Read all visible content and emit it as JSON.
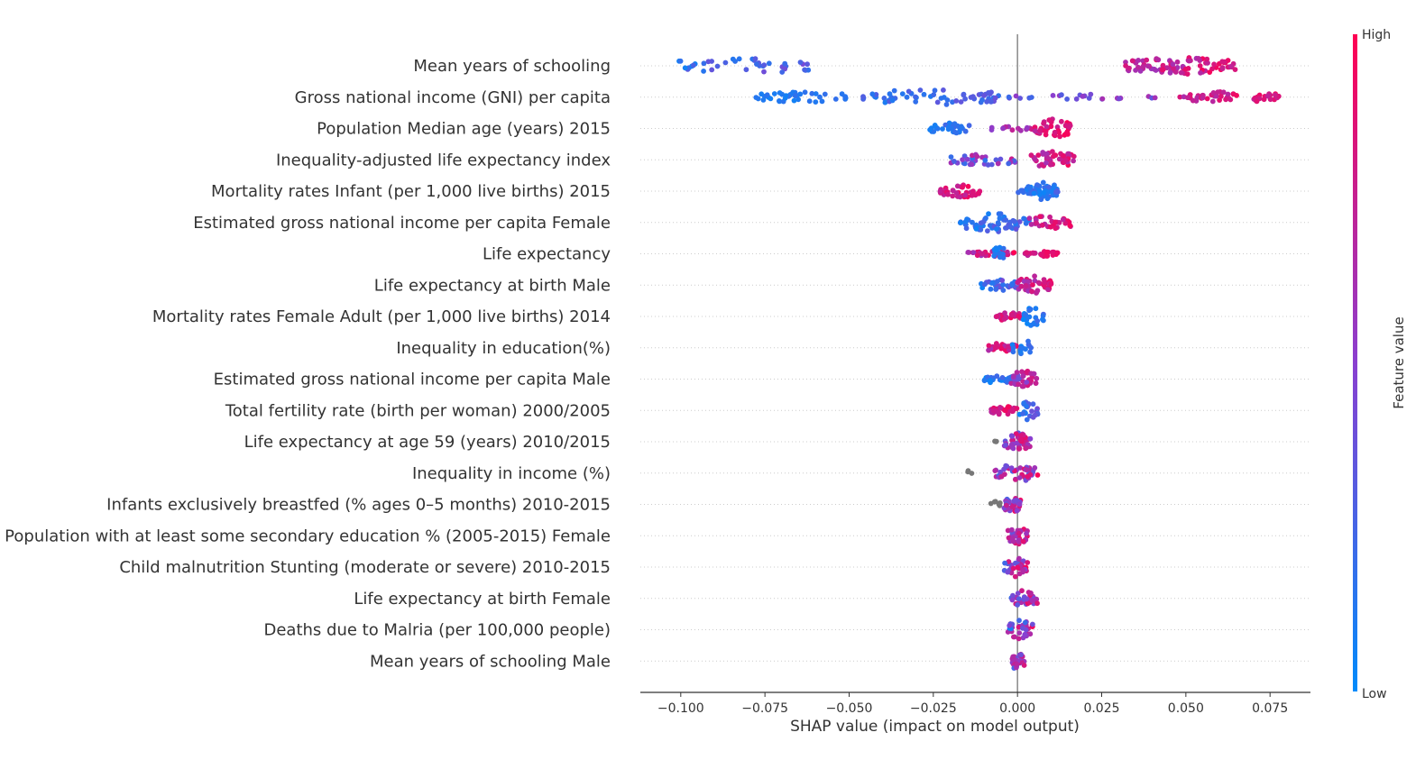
{
  "chart_data": {
    "type": "scatter",
    "subtype": "shap-beeswarm-summary",
    "xlabel": "SHAP value (impact on model output)",
    "xlim": [
      -0.112,
      0.087
    ],
    "xticks": [
      {
        "value": -0.1,
        "label": "−0.100"
      },
      {
        "value": -0.075,
        "label": "−0.075"
      },
      {
        "value": -0.05,
        "label": "−0.050"
      },
      {
        "value": -0.025,
        "label": "−0.025"
      },
      {
        "value": 0.0,
        "label": "0.000"
      },
      {
        "value": 0.025,
        "label": "0.025"
      },
      {
        "value": 0.05,
        "label": "0.050"
      },
      {
        "value": 0.075,
        "label": "0.075"
      }
    ],
    "colorbar": {
      "title": "Feature value",
      "high_label": "High",
      "low_label": "Low",
      "low_color": "#008bfb",
      "high_color": "#ff0052"
    },
    "missing_color": "#777777",
    "features": [
      {
        "name": "Mean years of schooling",
        "clusters": [
          {
            "x0": -0.102,
            "x1": -0.06,
            "n": 40,
            "c0": 0.05,
            "c1": 0.45,
            "spread": 0.9
          },
          {
            "x0": 0.032,
            "x1": 0.065,
            "n": 90,
            "c0": 0.55,
            "c1": 1.0,
            "spread": 1.0
          }
        ]
      },
      {
        "name": "Gross national income (GNI) per capita",
        "clusters": [
          {
            "x0": -0.078,
            "x1": -0.05,
            "n": 40,
            "c0": 0.05,
            "c1": 0.2,
            "spread": 0.6
          },
          {
            "x0": -0.046,
            "x1": -0.005,
            "n": 60,
            "c0": 0.05,
            "c1": 0.4,
            "spread": 0.9
          },
          {
            "x0": -0.003,
            "x1": 0.045,
            "n": 25,
            "c0": 0.2,
            "c1": 0.7,
            "spread": 0.3
          },
          {
            "x0": 0.048,
            "x1": 0.078,
            "n": 50,
            "c0": 0.6,
            "c1": 1.0,
            "spread": 0.6
          }
        ]
      },
      {
        "name": "Population Median age (years) 2015",
        "clusters": [
          {
            "x0": -0.026,
            "x1": -0.014,
            "n": 30,
            "c0": 0.0,
            "c1": 0.3,
            "spread": 0.6
          },
          {
            "x0": -0.008,
            "x1": 0.005,
            "n": 14,
            "c0": 0.4,
            "c1": 0.8,
            "spread": 0.3
          },
          {
            "x0": 0.005,
            "x1": 0.016,
            "n": 40,
            "c0": 0.7,
            "c1": 1.0,
            "spread": 1.0
          }
        ]
      },
      {
        "name": "Inequality-adjusted life expectancy index",
        "clusters": [
          {
            "x0": -0.021,
            "x1": 0.001,
            "n": 35,
            "c0": 0.0,
            "c1": 0.9,
            "spread": 0.6
          },
          {
            "x0": 0.004,
            "x1": 0.017,
            "n": 45,
            "c0": 0.55,
            "c1": 1.0,
            "spread": 1.0
          }
        ]
      },
      {
        "name": "Mortality rates Infant (per 1,000 live births) 2015",
        "clusters": [
          {
            "x0": -0.023,
            "x1": -0.011,
            "n": 35,
            "c0": 0.65,
            "c1": 1.0,
            "spread": 0.7
          },
          {
            "x0": 0.0,
            "x1": 0.006,
            "n": 15,
            "c0": 0.0,
            "c1": 0.4,
            "spread": 0.3
          },
          {
            "x0": 0.003,
            "x1": 0.012,
            "n": 45,
            "c0": 0.0,
            "c1": 0.3,
            "spread": 1.0
          }
        ]
      },
      {
        "name": "Estimated gross national income per capita Female",
        "clusters": [
          {
            "x0": -0.017,
            "x1": 0.004,
            "n": 60,
            "c0": 0.0,
            "c1": 0.4,
            "spread": 1.0
          },
          {
            "x0": 0.003,
            "x1": 0.016,
            "n": 30,
            "c0": 0.6,
            "c1": 1.0,
            "spread": 0.8
          }
        ]
      },
      {
        "name": "Life expectancy",
        "clusters": [
          {
            "x0": -0.015,
            "x1": -0.001,
            "n": 30,
            "c0": 0.55,
            "c1": 1.0,
            "spread": 0.3
          },
          {
            "x0": -0.007,
            "x1": -0.004,
            "n": 14,
            "c0": 0.0,
            "c1": 0.2,
            "spread": 1.0
          },
          {
            "x0": 0.002,
            "x1": 0.012,
            "n": 25,
            "c0": 0.7,
            "c1": 1.0,
            "spread": 0.3
          }
        ]
      },
      {
        "name": "Life expectancy at birth Male",
        "clusters": [
          {
            "x0": -0.011,
            "x1": 0.0,
            "n": 30,
            "c0": 0.0,
            "c1": 0.5,
            "spread": 0.6
          },
          {
            "x0": 0.0,
            "x1": 0.01,
            "n": 40,
            "c0": 0.5,
            "c1": 1.0,
            "spread": 1.0
          }
        ]
      },
      {
        "name": "Mortality rates Female Adult (per 1,000 live births) 2014",
        "clusters": [
          {
            "x0": -0.007,
            "x1": 0.001,
            "n": 25,
            "c0": 0.6,
            "c1": 1.0,
            "spread": 0.5
          },
          {
            "x0": 0.001,
            "x1": 0.008,
            "n": 25,
            "c0": 0.0,
            "c1": 0.3,
            "spread": 1.0
          }
        ]
      },
      {
        "name": "Inequality in education(%)",
        "clusters": [
          {
            "x0": -0.009,
            "x1": 0.0,
            "n": 30,
            "c0": 0.6,
            "c1": 1.0,
            "spread": 0.6
          },
          {
            "x0": -0.002,
            "x1": 0.005,
            "n": 15,
            "c0": 0.0,
            "c1": 0.3,
            "spread": 1.0
          }
        ]
      },
      {
        "name": "Estimated gross national income per capita Male",
        "clusters": [
          {
            "x0": -0.01,
            "x1": 0.0,
            "n": 35,
            "c0": 0.0,
            "c1": 0.3,
            "spread": 0.5
          },
          {
            "x0": -0.002,
            "x1": 0.006,
            "n": 35,
            "c0": 0.3,
            "c1": 0.9,
            "spread": 1.0
          }
        ]
      },
      {
        "name": "Total fertility rate (birth per woman) 2000/2005",
        "clusters": [
          {
            "x0": -0.008,
            "x1": 0.0,
            "n": 30,
            "c0": 0.7,
            "c1": 1.0,
            "spread": 0.5
          },
          {
            "x0": 0.0,
            "x1": 0.006,
            "n": 25,
            "c0": 0.0,
            "c1": 0.5,
            "spread": 1.0
          }
        ]
      },
      {
        "name": "Life expectancy at age 59 (years) 2010/2015",
        "clusters": [
          {
            "x0": -0.004,
            "x1": 0.004,
            "n": 40,
            "c0": 0.2,
            "c1": 1.0,
            "spread": 1.0
          },
          {
            "x0": -0.008,
            "x1": -0.006,
            "n": 3,
            "c0": -1,
            "c1": -1,
            "spread": 0.1
          }
        ]
      },
      {
        "name": "Inequality in income (%)",
        "clusters": [
          {
            "x0": -0.007,
            "x1": 0.006,
            "n": 40,
            "c0": 0.1,
            "c1": 1.0,
            "spread": 1.0
          },
          {
            "x0": -0.015,
            "x1": -0.012,
            "n": 3,
            "c0": -1,
            "c1": -1,
            "spread": 0.4
          }
        ]
      },
      {
        "name": "Infants exclusively breastfed (% ages 0–5 months) 2010-2015",
        "clusters": [
          {
            "x0": -0.004,
            "x1": 0.001,
            "n": 35,
            "c0": 0.2,
            "c1": 1.0,
            "spread": 1.0
          },
          {
            "x0": -0.008,
            "x1": -0.005,
            "n": 6,
            "c0": -1,
            "c1": -1,
            "spread": 0.3
          }
        ]
      },
      {
        "name": "Population with at least some secondary education % (2005-2015) Female",
        "clusters": [
          {
            "x0": -0.003,
            "x1": 0.003,
            "n": 35,
            "c0": 0.3,
            "c1": 1.0,
            "spread": 1.0
          }
        ]
      },
      {
        "name": "Child malnutrition Stunting (moderate or severe) 2010-2015",
        "clusters": [
          {
            "x0": -0.004,
            "x1": 0.003,
            "n": 35,
            "c0": 0.2,
            "c1": 1.0,
            "spread": 1.0
          }
        ]
      },
      {
        "name": "Life expectancy at birth Female",
        "clusters": [
          {
            "x0": -0.002,
            "x1": 0.006,
            "n": 35,
            "c0": 0.2,
            "c1": 1.0,
            "spread": 1.0
          }
        ]
      },
      {
        "name": "Deaths due to Malria (per 100,000 people)",
        "clusters": [
          {
            "x0": -0.003,
            "x1": 0.005,
            "n": 35,
            "c0": 0.0,
            "c1": 1.0,
            "spread": 1.0
          }
        ]
      },
      {
        "name": "Mean years of schooling Male",
        "clusters": [
          {
            "x0": -0.002,
            "x1": 0.002,
            "n": 35,
            "c0": 0.2,
            "c1": 1.0,
            "spread": 1.0
          }
        ]
      }
    ]
  }
}
